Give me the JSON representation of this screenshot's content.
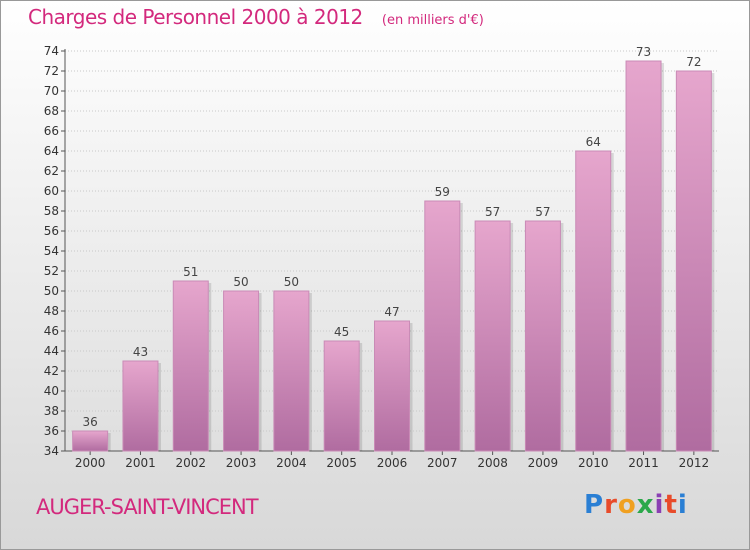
{
  "title": "Charges de Personnel 2000 à 2012",
  "subtitle": "(en milliers d'€)",
  "place": "AUGER-SAINT-VINCENT",
  "logo": {
    "text": "Proxiti",
    "colors": [
      "#2a7fd4",
      "#e84b2a",
      "#f0a020",
      "#2aa84a",
      "#8a3fb3",
      "#e84b2a",
      "#2a7fd4"
    ]
  },
  "colors": {
    "title": "#d3297d",
    "bar_top": "#e6a6cd",
    "bar_bottom": "#b06ca0"
  },
  "chart_data": {
    "type": "bar",
    "categories": [
      "2000",
      "2001",
      "2002",
      "2003",
      "2004",
      "2005",
      "2006",
      "2007",
      "2008",
      "2009",
      "2010",
      "2011",
      "2012"
    ],
    "values": [
      36,
      43,
      51,
      50,
      50,
      45,
      47,
      59,
      57,
      57,
      64,
      73,
      72
    ],
    "ylim": [
      34,
      74
    ],
    "yticks": [
      34,
      36,
      38,
      40,
      42,
      44,
      46,
      48,
      50,
      52,
      54,
      56,
      58,
      60,
      62,
      64,
      66,
      68,
      70,
      72,
      74
    ],
    "grid": true,
    "title": "Charges de Personnel 2000 à 2012",
    "subtitle": "(en milliers d'€)"
  }
}
